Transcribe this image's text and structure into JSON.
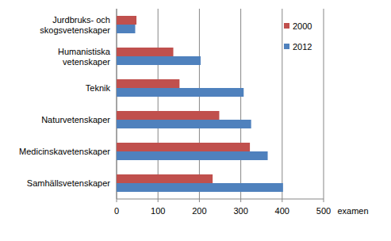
{
  "chart_data": {
    "type": "bar",
    "orientation": "horizontal",
    "x_label": "examen",
    "categories": [
      "Jurdbruks- och skogsvetenskaper",
      "Humanistiska vetenskaper",
      "Teknik",
      "Naturvetenskaper",
      "Medicinskavetenskaper",
      "Samhällsvetenskaper"
    ],
    "series": [
      {
        "name": "2000",
        "color": "#c0504d",
        "values": [
          48,
          137,
          152,
          248,
          322,
          232
        ]
      },
      {
        "name": "2012",
        "color": "#4f81bd",
        "values": [
          45,
          203,
          307,
          325,
          365,
          402
        ]
      }
    ],
    "xlim": [
      0,
      500
    ],
    "xticks": [
      0,
      100,
      200,
      300,
      400,
      500
    ],
    "grid": true,
    "legend": "upper right"
  }
}
